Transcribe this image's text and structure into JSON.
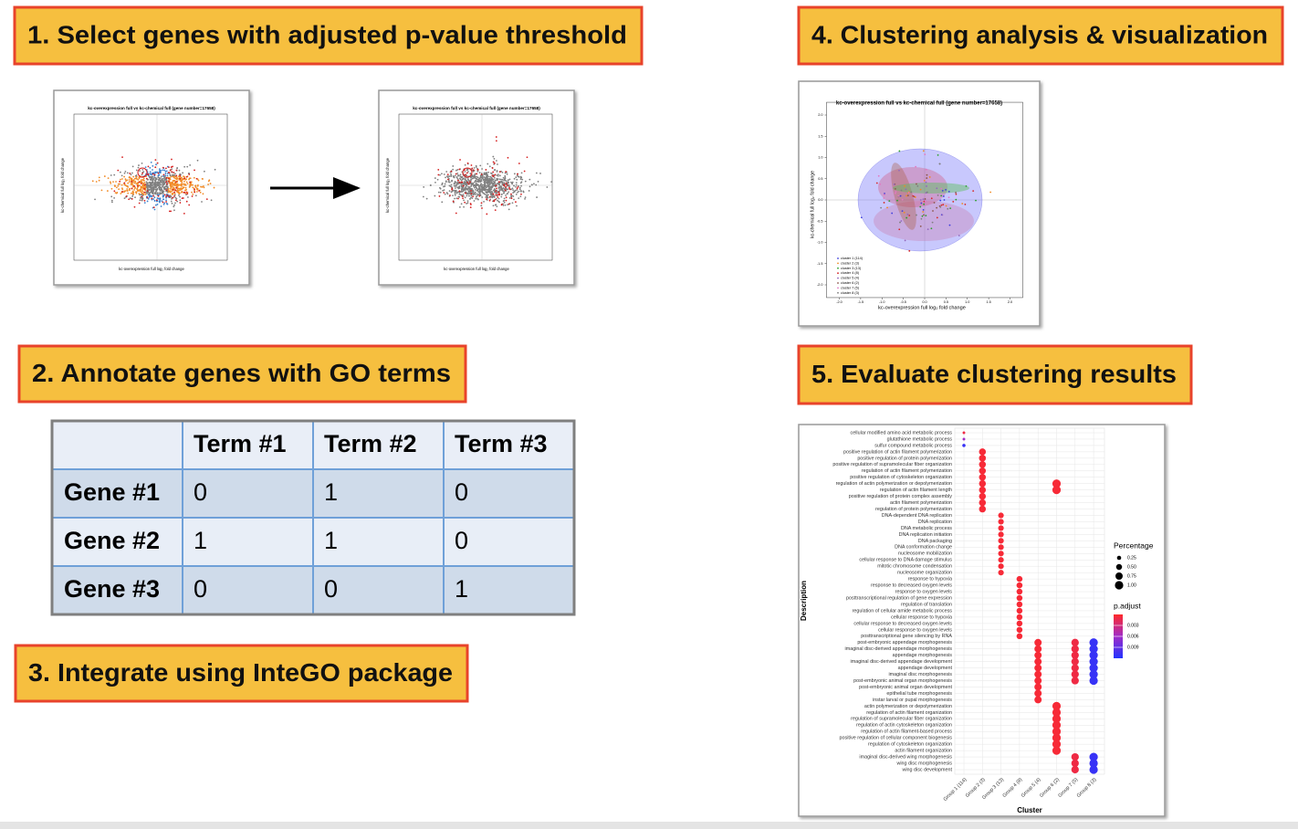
{
  "steps": [
    "1. Select genes with adjusted p-value threshold",
    "2. Annotate genes with GO terms",
    "3. Integrate using InteGO package",
    "4. Clustering analysis & visualization",
    "5. Evaluate clustering results"
  ],
  "plot_text": {
    "title": "kc-overexpression full vs kc-chemical full (gene number=17658)",
    "x_label": "kc-overexpression full log₂ fold change",
    "y_label": "kc-chemical full log₂ fold change"
  },
  "table": {
    "columns": [
      "Term #1",
      "Term #2",
      "Term #3"
    ],
    "rows": [
      {
        "gene": "Gene #1",
        "values": [
          0,
          1,
          0
        ]
      },
      {
        "gene": "Gene #2",
        "values": [
          1,
          1,
          0
        ]
      },
      {
        "gene": "Gene #3",
        "values": [
          0,
          0,
          1
        ]
      }
    ]
  },
  "cluster_plot": {
    "xlim": [
      -2.3,
      2.3
    ],
    "ylim": [
      -2.3,
      2.3
    ],
    "xticks": [
      {
        "value": -2,
        "label": "-2.0"
      },
      {
        "value": -1.5,
        "label": "-1.5"
      },
      {
        "value": -1,
        "label": "-1.0"
      },
      {
        "value": -0.5,
        "label": "-0.5"
      },
      {
        "value": 0,
        "label": "0.0"
      },
      {
        "value": 0.5,
        "label": "0.5"
      },
      {
        "value": 1,
        "label": "1.0"
      },
      {
        "value": 1.5,
        "label": "1.5"
      },
      {
        "value": 2,
        "label": "2.0"
      }
    ],
    "yticks": [
      {
        "value": 2,
        "label": "2.0"
      },
      {
        "value": 1.5,
        "label": "1.5"
      },
      {
        "value": 1,
        "label": "1.0"
      },
      {
        "value": 0.5,
        "label": "0.5"
      },
      {
        "value": 0,
        "label": "0.0"
      },
      {
        "value": -0.5,
        "label": "-0.5"
      },
      {
        "value": -1,
        "label": "-1.0"
      },
      {
        "value": -1.5,
        "label": "-1.5"
      },
      {
        "value": -2,
        "label": "-2.0"
      }
    ],
    "legend": [
      {
        "name": "cluster 1 (114)",
        "color": "#3b3bdc"
      },
      {
        "name": "cluster 2 (3)",
        "color": "#f08a24"
      },
      {
        "name": "cluster 3 (13)",
        "color": "#2ca02c"
      },
      {
        "name": "cluster 4 (8)",
        "color": "#d62728"
      },
      {
        "name": "cluster 5 (4)",
        "color": "#9467bd"
      },
      {
        "name": "cluster 6 (2)",
        "color": "#8c564b"
      },
      {
        "name": "cluster 7 (5)",
        "color": "#e377c2"
      },
      {
        "name": "cluster 8 (3)",
        "color": "#7f7f7f"
      }
    ]
  },
  "dot_plot": {
    "y_label": "Description",
    "x_label": "Cluster",
    "groups": [
      "Group 1 (114)",
      "Group 2 (3)",
      "Group 3 (13)",
      "Group 4 (8)",
      "Group 5 (4)",
      "Group 6 (2)",
      "Group 7 (5)",
      "Group 8 (3)"
    ],
    "descriptions": [
      "cellular modified amino acid metabolic process",
      "glutathione metabolic process",
      "sulfur compound metabolic process",
      "positive regulation of actin filament polymerization",
      "positive regulation of protein polymerization",
      "positive regulation of supramolecular fiber organization",
      "regulation of actin filament polymerization",
      "positive regulation of cytoskeleton organization",
      "regulation of actin polymerization or depolymerization",
      "regulation of actin filament length",
      "positive regulation of protein complex assembly",
      "actin filament polymerization",
      "regulation of protein polymerization",
      "DNA-dependent DNA replication",
      "DNA replication",
      "DNA metabolic process",
      "DNA replication initiation",
      "DNA packaging",
      "DNA conformation change",
      "nucleosome mobilization",
      "cellular response to DNA damage stimulus",
      "mitotic chromosome condensation",
      "nucleosome organization",
      "response to hypoxia",
      "response to decreased oxygen levels",
      "response to oxygen levels",
      "posttranscriptional regulation of gene expression",
      "regulation of translation",
      "regulation of cellular amide metabolic process",
      "cellular response to hypoxia",
      "cellular response to decreased oxygen levels",
      "cellular response to oxygen levels",
      "posttranscriptional gene silencing by RNA",
      "post-embryonic appendage morphogenesis",
      "imaginal disc-derived appendage morphogenesis",
      "appendage morphogenesis",
      "imaginal disc-derived appendage development",
      "appendage development",
      "imaginal disc morphogenesis",
      "post-embryonic animal organ morphogenesis",
      "post-embryonic animal organ development",
      "epithelial tube morphogenesis",
      "instar larval or pupal morphogenesis",
      "actin polymerization or depolymerization",
      "regulation of actin filament organization",
      "regulation of supramolecular fiber organization",
      "regulation of actin cytoskeleton organization",
      "regulation of actin filament-based process",
      "positive regulation of cellular component biogenesis",
      "regulation of cytoskeleton organization",
      "actin filament organization",
      "imaginal disc-derived wing morphogenesis",
      "wing disc morphogenesis",
      "wing disc development"
    ],
    "dots": [
      {
        "row": 0,
        "group": 0,
        "percentage": 0.1,
        "p_adjust": 0.001
      },
      {
        "row": 1,
        "group": 0,
        "percentage": 0.1,
        "p_adjust": 0.006
      },
      {
        "row": 2,
        "group": 0,
        "percentage": 0.15,
        "p_adjust": 0.011
      },
      {
        "row": 3,
        "group": 1,
        "percentage": 0.67,
        "p_adjust": 0.0005
      },
      {
        "row": 4,
        "group": 1,
        "percentage": 0.67,
        "p_adjust": 0.0005
      },
      {
        "row": 5,
        "group": 1,
        "percentage": 0.67,
        "p_adjust": 0.0005
      },
      {
        "row": 6,
        "group": 1,
        "percentage": 0.67,
        "p_adjust": 0.0005
      },
      {
        "row": 7,
        "group": 1,
        "percentage": 0.67,
        "p_adjust": 0.0005
      },
      {
        "row": 8,
        "group": 1,
        "percentage": 0.67,
        "p_adjust": 0.0005
      },
      {
        "row": 9,
        "group": 1,
        "percentage": 0.67,
        "p_adjust": 0.0005
      },
      {
        "row": 10,
        "group": 1,
        "percentage": 0.67,
        "p_adjust": 0.0005
      },
      {
        "row": 11,
        "group": 1,
        "percentage": 0.67,
        "p_adjust": 0.0005
      },
      {
        "row": 12,
        "group": 1,
        "percentage": 0.67,
        "p_adjust": 0.0005
      },
      {
        "row": 13,
        "group": 2,
        "percentage": 0.45,
        "p_adjust": 0.0005
      },
      {
        "row": 14,
        "group": 2,
        "percentage": 0.45,
        "p_adjust": 0.0005
      },
      {
        "row": 15,
        "group": 2,
        "percentage": 0.45,
        "p_adjust": 0.0005
      },
      {
        "row": 16,
        "group": 2,
        "percentage": 0.45,
        "p_adjust": 0.0005
      },
      {
        "row": 17,
        "group": 2,
        "percentage": 0.45,
        "p_adjust": 0.0005
      },
      {
        "row": 18,
        "group": 2,
        "percentage": 0.45,
        "p_adjust": 0.0005
      },
      {
        "row": 19,
        "group": 2,
        "percentage": 0.45,
        "p_adjust": 0.0005
      },
      {
        "row": 20,
        "group": 2,
        "percentage": 0.45,
        "p_adjust": 0.0005
      },
      {
        "row": 21,
        "group": 2,
        "percentage": 0.45,
        "p_adjust": 0.0005
      },
      {
        "row": 22,
        "group": 2,
        "percentage": 0.45,
        "p_adjust": 0.0005
      },
      {
        "row": 23,
        "group": 3,
        "percentage": 0.5,
        "p_adjust": 0.0005
      },
      {
        "row": 24,
        "group": 3,
        "percentage": 0.5,
        "p_adjust": 0.0005
      },
      {
        "row": 25,
        "group": 3,
        "percentage": 0.5,
        "p_adjust": 0.0005
      },
      {
        "row": 26,
        "group": 3,
        "percentage": 0.5,
        "p_adjust": 0.0005
      },
      {
        "row": 27,
        "group": 3,
        "percentage": 0.5,
        "p_adjust": 0.0005
      },
      {
        "row": 28,
        "group": 3,
        "percentage": 0.5,
        "p_adjust": 0.0005
      },
      {
        "row": 29,
        "group": 3,
        "percentage": 0.5,
        "p_adjust": 0.0005
      },
      {
        "row": 30,
        "group": 3,
        "percentage": 0.5,
        "p_adjust": 0.0005
      },
      {
        "row": 31,
        "group": 3,
        "percentage": 0.5,
        "p_adjust": 0.0005
      },
      {
        "row": 32,
        "group": 3,
        "percentage": 0.5,
        "p_adjust": 0.0005
      },
      {
        "row": 33,
        "group": 4,
        "percentage": 0.75,
        "p_adjust": 0.0005
      },
      {
        "row": 34,
        "group": 4,
        "percentage": 0.75,
        "p_adjust": 0.0005
      },
      {
        "row": 35,
        "group": 4,
        "percentage": 0.75,
        "p_adjust": 0.0005
      },
      {
        "row": 36,
        "group": 4,
        "percentage": 0.75,
        "p_adjust": 0.0005
      },
      {
        "row": 37,
        "group": 4,
        "percentage": 0.75,
        "p_adjust": 0.0005
      },
      {
        "row": 38,
        "group": 4,
        "percentage": 0.75,
        "p_adjust": 0.0005
      },
      {
        "row": 39,
        "group": 4,
        "percentage": 0.75,
        "p_adjust": 0.0005
      },
      {
        "row": 40,
        "group": 4,
        "percentage": 0.75,
        "p_adjust": 0.0005
      },
      {
        "row": 41,
        "group": 4,
        "percentage": 0.75,
        "p_adjust": 0.0005
      },
      {
        "row": 42,
        "group": 4,
        "percentage": 0.75,
        "p_adjust": 0.0005
      },
      {
        "row": 8,
        "group": 5,
        "percentage": 1,
        "p_adjust": 0.0005
      },
      {
        "row": 9,
        "group": 5,
        "percentage": 1,
        "p_adjust": 0.0005
      },
      {
        "row": 43,
        "group": 5,
        "percentage": 1,
        "p_adjust": 0.0005
      },
      {
        "row": 44,
        "group": 5,
        "percentage": 1,
        "p_adjust": 0.0005
      },
      {
        "row": 45,
        "group": 5,
        "percentage": 1,
        "p_adjust": 0.0005
      },
      {
        "row": 46,
        "group": 5,
        "percentage": 1,
        "p_adjust": 0.0005
      },
      {
        "row": 47,
        "group": 5,
        "percentage": 1,
        "p_adjust": 0.0005
      },
      {
        "row": 48,
        "group": 5,
        "percentage": 1,
        "p_adjust": 0.0005
      },
      {
        "row": 49,
        "group": 5,
        "percentage": 1,
        "p_adjust": 0.0005
      },
      {
        "row": 50,
        "group": 5,
        "percentage": 1,
        "p_adjust": 0.0005
      },
      {
        "row": 33,
        "group": 6,
        "percentage": 0.8,
        "p_adjust": 0.001
      },
      {
        "row": 34,
        "group": 6,
        "percentage": 0.8,
        "p_adjust": 0.001
      },
      {
        "row": 35,
        "group": 6,
        "percentage": 0.8,
        "p_adjust": 0.001
      },
      {
        "row": 36,
        "group": 6,
        "percentage": 0.8,
        "p_adjust": 0.001
      },
      {
        "row": 37,
        "group": 6,
        "percentage": 0.8,
        "p_adjust": 0.001
      },
      {
        "row": 38,
        "group": 6,
        "percentage": 0.8,
        "p_adjust": 0.001
      },
      {
        "row": 39,
        "group": 6,
        "percentage": 0.8,
        "p_adjust": 0.001
      },
      {
        "row": 51,
        "group": 6,
        "percentage": 0.8,
        "p_adjust": 0.001
      },
      {
        "row": 52,
        "group": 6,
        "percentage": 0.8,
        "p_adjust": 0.001
      },
      {
        "row": 53,
        "group": 6,
        "percentage": 0.8,
        "p_adjust": 0.001
      },
      {
        "row": 33,
        "group": 7,
        "percentage": 1,
        "p_adjust": 0.011
      },
      {
        "row": 34,
        "group": 7,
        "percentage": 1,
        "p_adjust": 0.011
      },
      {
        "row": 35,
        "group": 7,
        "percentage": 1,
        "p_adjust": 0.011
      },
      {
        "row": 36,
        "group": 7,
        "percentage": 1,
        "p_adjust": 0.011
      },
      {
        "row": 37,
        "group": 7,
        "percentage": 1,
        "p_adjust": 0.011
      },
      {
        "row": 38,
        "group": 7,
        "percentage": 1,
        "p_adjust": 0.011
      },
      {
        "row": 39,
        "group": 7,
        "percentage": 1,
        "p_adjust": 0.011
      },
      {
        "row": 51,
        "group": 7,
        "percentage": 1,
        "p_adjust": 0.011
      },
      {
        "row": 52,
        "group": 7,
        "percentage": 1,
        "p_adjust": 0.011
      },
      {
        "row": 53,
        "group": 7,
        "percentage": 1,
        "p_adjust": 0.011
      }
    ],
    "size_legend": {
      "title": "Percentage",
      "ticks": [
        0.25,
        {
          "value": 0.5,
          "label": "0.50"
        },
        0.75,
        {
          "value": 1,
          "label": "1.00"
        }
      ]
    },
    "color_legend": {
      "title": "p.adjust",
      "lim": [
        0,
        0.012
      ],
      "ticks": [
        0.003,
        0.006,
        0.009
      ]
    }
  }
}
